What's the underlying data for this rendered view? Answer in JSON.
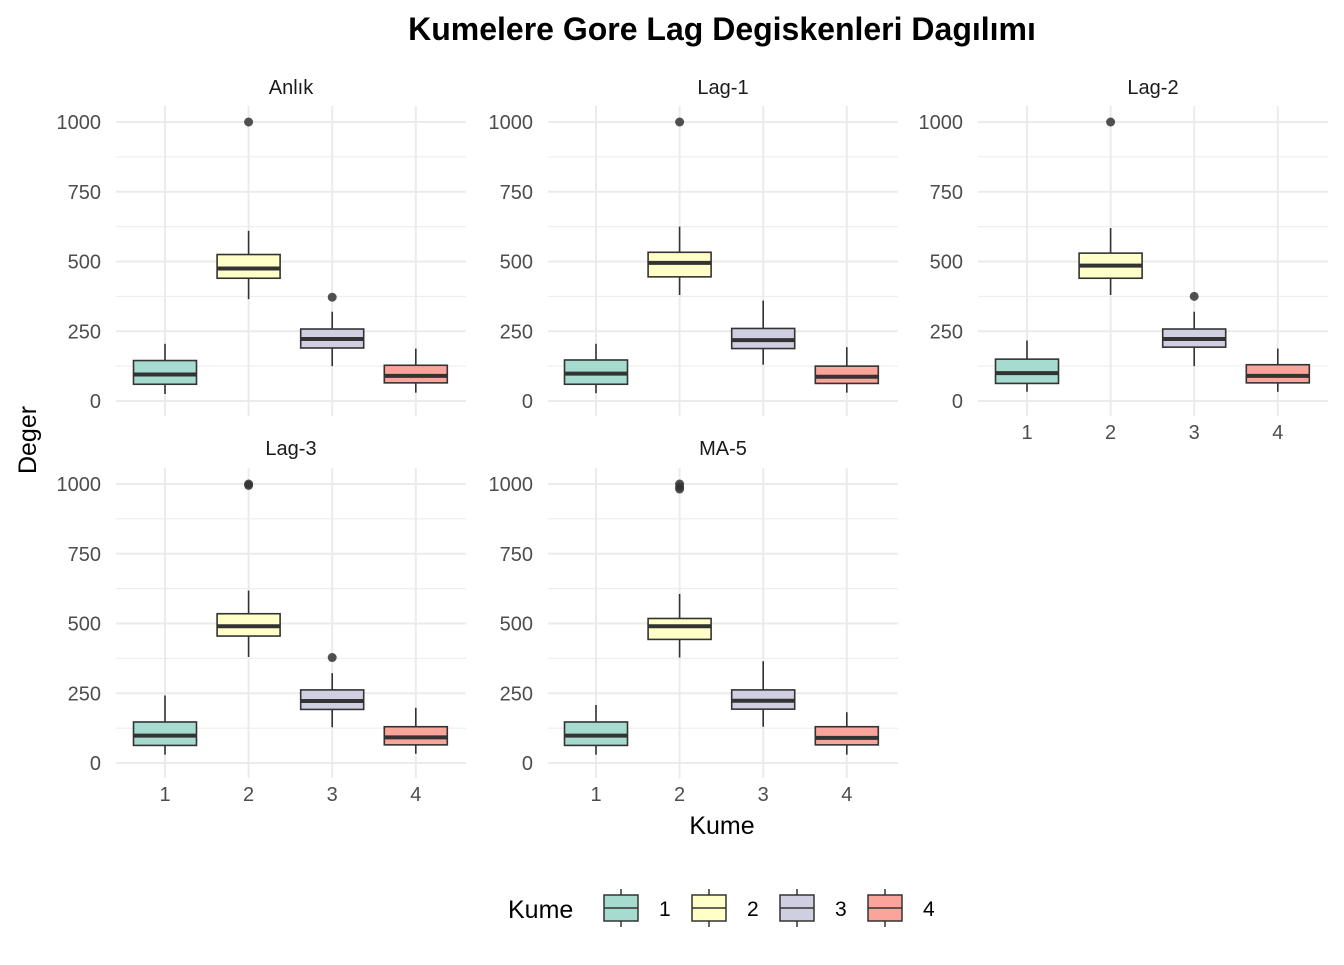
{
  "chart_data": {
    "type": "boxplot",
    "title": "Kumelere Gore Lag Degiskenleri Dagılımı",
    "xlabel": "Kume",
    "ylabel": "Deger",
    "categories": [
      "1",
      "2",
      "3",
      "4"
    ],
    "y_ticks": [
      "0",
      "250",
      "500",
      "750",
      "1000"
    ],
    "ylim": [
      -35,
      1050
    ],
    "grid": true,
    "legend": {
      "title": "Kume",
      "position": "bottom",
      "items": [
        {
          "label": "1",
          "color": "#a6dbd0"
        },
        {
          "label": "2",
          "color": "#ffffc8"
        },
        {
          "label": "3",
          "color": "#d0cfe2"
        },
        {
          "label": "4",
          "color": "#fba49c"
        }
      ]
    },
    "panels": [
      {
        "label": "Anlık",
        "boxes": [
          {
            "category": "1",
            "whisker_low": 25,
            "q1": 60,
            "median": 95,
            "q3": 145,
            "whisker_high": 205,
            "outliers": []
          },
          {
            "category": "2",
            "whisker_low": 365,
            "q1": 440,
            "median": 475,
            "q3": 525,
            "whisker_high": 610,
            "outliers": [
              1000
            ]
          },
          {
            "category": "3",
            "whisker_low": 125,
            "q1": 190,
            "median": 222,
            "q3": 258,
            "whisker_high": 320,
            "outliers": [
              372
            ]
          },
          {
            "category": "4",
            "whisker_low": 30,
            "q1": 65,
            "median": 90,
            "q3": 128,
            "whisker_high": 188,
            "outliers": []
          }
        ]
      },
      {
        "label": "Lag-1",
        "boxes": [
          {
            "category": "1",
            "whisker_low": 28,
            "q1": 60,
            "median": 98,
            "q3": 147,
            "whisker_high": 205,
            "outliers": []
          },
          {
            "category": "2",
            "whisker_low": 380,
            "q1": 445,
            "median": 495,
            "q3": 533,
            "whisker_high": 625,
            "outliers": [
              1000
            ]
          },
          {
            "category": "3",
            "whisker_low": 130,
            "q1": 188,
            "median": 218,
            "q3": 260,
            "whisker_high": 360,
            "outliers": []
          },
          {
            "category": "4",
            "whisker_low": 30,
            "q1": 63,
            "median": 87,
            "q3": 125,
            "whisker_high": 193,
            "outliers": []
          }
        ]
      },
      {
        "label": "Lag-2",
        "boxes": [
          {
            "category": "1",
            "whisker_low": 33,
            "q1": 63,
            "median": 100,
            "q3": 150,
            "whisker_high": 217,
            "outliers": []
          },
          {
            "category": "2",
            "whisker_low": 380,
            "q1": 440,
            "median": 485,
            "q3": 530,
            "whisker_high": 620,
            "outliers": [
              1000
            ]
          },
          {
            "category": "3",
            "whisker_low": 125,
            "q1": 193,
            "median": 222,
            "q3": 258,
            "whisker_high": 320,
            "outliers": [
              375
            ]
          },
          {
            "category": "4",
            "whisker_low": 33,
            "q1": 65,
            "median": 90,
            "q3": 130,
            "whisker_high": 188,
            "outliers": []
          }
        ]
      },
      {
        "label": "Lag-3",
        "boxes": [
          {
            "category": "1",
            "whisker_low": 30,
            "q1": 63,
            "median": 98,
            "q3": 147,
            "whisker_high": 242,
            "outliers": []
          },
          {
            "category": "2",
            "whisker_low": 380,
            "q1": 455,
            "median": 490,
            "q3": 535,
            "whisker_high": 618,
            "outliers": [
              995,
              1000
            ]
          },
          {
            "category": "3",
            "whisker_low": 128,
            "q1": 192,
            "median": 222,
            "q3": 262,
            "whisker_high": 322,
            "outliers": [
              378
            ]
          },
          {
            "category": "4",
            "whisker_low": 33,
            "q1": 65,
            "median": 92,
            "q3": 130,
            "whisker_high": 198,
            "outliers": []
          }
        ]
      },
      {
        "label": "MA-5",
        "boxes": [
          {
            "category": "1",
            "whisker_low": 30,
            "q1": 63,
            "median": 98,
            "q3": 147,
            "whisker_high": 208,
            "outliers": []
          },
          {
            "category": "2",
            "whisker_low": 378,
            "q1": 443,
            "median": 490,
            "q3": 518,
            "whisker_high": 606,
            "outliers": [
              982,
              990,
              1000
            ]
          },
          {
            "category": "3",
            "whisker_low": 130,
            "q1": 193,
            "median": 223,
            "q3": 262,
            "whisker_high": 365,
            "outliers": []
          },
          {
            "category": "4",
            "whisker_low": 30,
            "q1": 65,
            "median": 90,
            "q3": 130,
            "whisker_high": 182,
            "outliers": []
          }
        ]
      }
    ]
  }
}
